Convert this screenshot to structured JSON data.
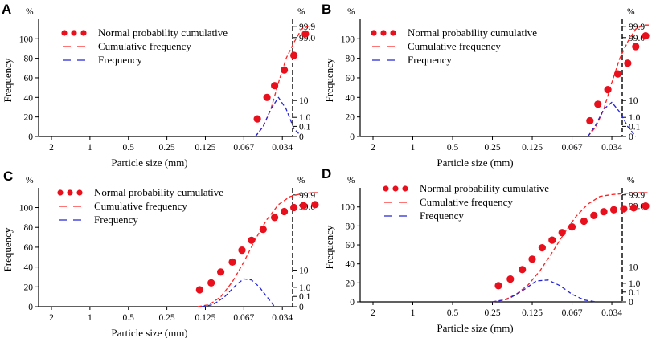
{
  "figure": {
    "legend": {
      "normal": "Normal probability cumulative",
      "cumulative": "Cumulative frequency",
      "frequency": "Frequency"
    },
    "colors": {
      "dots": "#e8101c",
      "cumulative": "#ff2020",
      "frequency": "#2424d6",
      "axis": "#000000"
    }
  },
  "chart_data": [
    {
      "panel": "A",
      "type": "line",
      "xlabel": "Particle size (mm)",
      "ylabel": "Frequency",
      "left_unit": "%",
      "right_unit": "%",
      "x_ticks": [
        "2",
        "1",
        "0.5",
        "0.25",
        "0.125",
        "0.067",
        "0.034"
      ],
      "y_left_ticks": [
        0,
        20,
        40,
        60,
        80,
        100
      ],
      "y_left_range": [
        0,
        115
      ],
      "y_right_ticks": [
        "0",
        "0.1",
        "1.0",
        "10",
        "99.0",
        "99.9"
      ],
      "normal_probability_cumulative": {
        "x_index": [
          5.35,
          5.6,
          5.8,
          6.05,
          6.3,
          6.6
        ],
        "y": [
          18,
          40,
          52,
          68,
          83,
          105
        ]
      },
      "cumulative_frequency": {
        "x_index": [
          5.3,
          5.5,
          5.7,
          5.9,
          6.1,
          6.3,
          6.5,
          6.7,
          6.85
        ],
        "y": [
          0,
          10,
          28,
          55,
          80,
          96,
          110,
          113,
          113
        ]
      },
      "frequency": {
        "x_index": [
          5.3,
          5.5,
          5.7,
          5.9,
          6.1,
          6.3,
          6.5
        ],
        "y": [
          0,
          10,
          28,
          40,
          28,
          8,
          0
        ]
      }
    },
    {
      "panel": "B",
      "type": "line",
      "xlabel": "Particle size (mm)",
      "ylabel": "Frequency",
      "left_unit": "%",
      "right_unit": "%",
      "x_ticks": [
        "2",
        "1",
        "0.5",
        "0.25",
        "0.125",
        "0.067",
        "0.034"
      ],
      "y_left_ticks": [
        0,
        20,
        40,
        60,
        80,
        100
      ],
      "y_left_range": [
        0,
        115
      ],
      "y_right_ticks": [
        "0",
        "0.1",
        "1.0",
        "10",
        "99.0",
        "99.9"
      ],
      "normal_probability_cumulative": {
        "x_index": [
          5.45,
          5.65,
          5.9,
          6.15,
          6.4,
          6.6,
          6.85
        ],
        "y": [
          16,
          33,
          48,
          64,
          75,
          92,
          103
        ]
      },
      "cumulative_frequency": {
        "x_index": [
          5.4,
          5.6,
          5.8,
          6.0,
          6.2,
          6.4,
          6.6,
          6.8,
          6.95
        ],
        "y": [
          0,
          10,
          28,
          55,
          80,
          97,
          110,
          114,
          114
        ]
      },
      "frequency": {
        "x_index": [
          5.4,
          5.6,
          5.8,
          6.0,
          6.2,
          6.4,
          6.6
        ],
        "y": [
          0,
          12,
          28,
          35,
          25,
          10,
          0
        ]
      }
    },
    {
      "panel": "C",
      "type": "line",
      "xlabel": "Particle size (mm)",
      "ylabel": "Frequency",
      "left_unit": "%",
      "right_unit": "%",
      "x_ticks": [
        "2",
        "1",
        "0.5",
        "0.25",
        "0.125",
        "0.067",
        "0.034"
      ],
      "y_left_ticks": [
        0,
        20,
        40,
        60,
        80,
        100
      ],
      "y_left_range": [
        0,
        115
      ],
      "y_right_ticks": [
        "0",
        "0.1",
        "1.0",
        "10",
        "99.0",
        "99.9"
      ],
      "normal_probability_cumulative": {
        "x_index": [
          3.85,
          4.15,
          4.4,
          4.7,
          4.95,
          5.2,
          5.5,
          5.8,
          6.05,
          6.3,
          6.55,
          6.85
        ],
        "y": [
          17,
          24,
          35,
          45,
          57,
          67,
          78,
          90,
          96,
          100,
          102,
          103
        ]
      },
      "cumulative_frequency": {
        "x_index": [
          3.8,
          4.1,
          4.4,
          4.7,
          5.0,
          5.3,
          5.6,
          5.9,
          6.2,
          6.5,
          6.8,
          6.95
        ],
        "y": [
          0,
          2,
          10,
          25,
          45,
          68,
          88,
          103,
          111,
          114,
          115,
          115
        ]
      },
      "frequency": {
        "x_index": [
          3.9,
          4.2,
          4.5,
          4.8,
          5.0,
          5.2,
          5.4,
          5.6,
          5.8
        ],
        "y": [
          0,
          2,
          10,
          22,
          28,
          27,
          20,
          10,
          0
        ]
      }
    },
    {
      "panel": "D",
      "type": "line",
      "xlabel": "Particle size (mm)",
      "ylabel": "Frequency",
      "left_unit": "%",
      "right_unit": "%",
      "x_ticks": [
        "2",
        "1",
        "0.5",
        "0.25",
        "0.125",
        "0.067",
        "0.034"
      ],
      "y_left_ticks": [
        0,
        20,
        40,
        60,
        80,
        100
      ],
      "y_left_range": [
        0,
        115
      ],
      "y_right_ticks": [
        "0",
        "0.1",
        "1.0",
        "10",
        "99.0",
        "99.9"
      ],
      "normal_probability_cumulative": {
        "x_index": [
          3.15,
          3.45,
          3.75,
          4.0,
          4.25,
          4.5,
          4.75,
          5.0,
          5.3,
          5.55,
          5.8,
          6.05,
          6.3,
          6.55,
          6.85
        ],
        "y": [
          17,
          24,
          34,
          45,
          57,
          65,
          73,
          79,
          85,
          91,
          95,
          97,
          98,
          99,
          101
        ]
      },
      "cumulative_frequency": {
        "x_index": [
          3.0,
          3.3,
          3.6,
          3.9,
          4.2,
          4.5,
          4.8,
          5.1,
          5.4,
          5.7,
          6.0,
          6.3,
          6.6,
          6.95
        ],
        "y": [
          0,
          2,
          8,
          18,
          33,
          52,
          72,
          90,
          103,
          111,
          113,
          114,
          115,
          115
        ]
      },
      "frequency": {
        "x_index": [
          3.0,
          3.4,
          3.8,
          4.1,
          4.4,
          4.7,
          5.0,
          5.3,
          5.6
        ],
        "y": [
          0,
          3,
          13,
          22,
          23,
          17,
          8,
          2,
          0
        ]
      }
    }
  ]
}
